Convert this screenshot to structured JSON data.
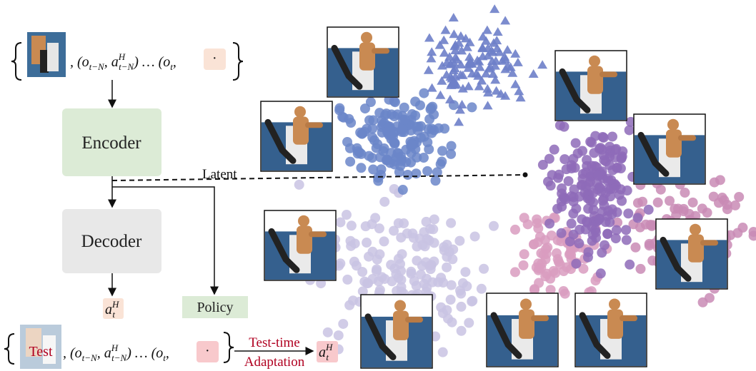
{
  "encoder": "Encoder",
  "decoder": "Decoder",
  "latent": "Latent",
  "policy": "Policy",
  "sequence": {
    "t1": ", (o",
    "s1": "t−N",
    "t2": ", a",
    "h2": "H",
    "s2": "t−N",
    "t3": ") … (o",
    "s3": "t",
    "t4": ","
  },
  "dot": "·",
  "output": {
    "base": "a",
    "sup": "H",
    "sub": "t"
  },
  "test": "Test",
  "adaptation": {
    "line1": "Test-time",
    "line2": "Adaptation"
  }
}
